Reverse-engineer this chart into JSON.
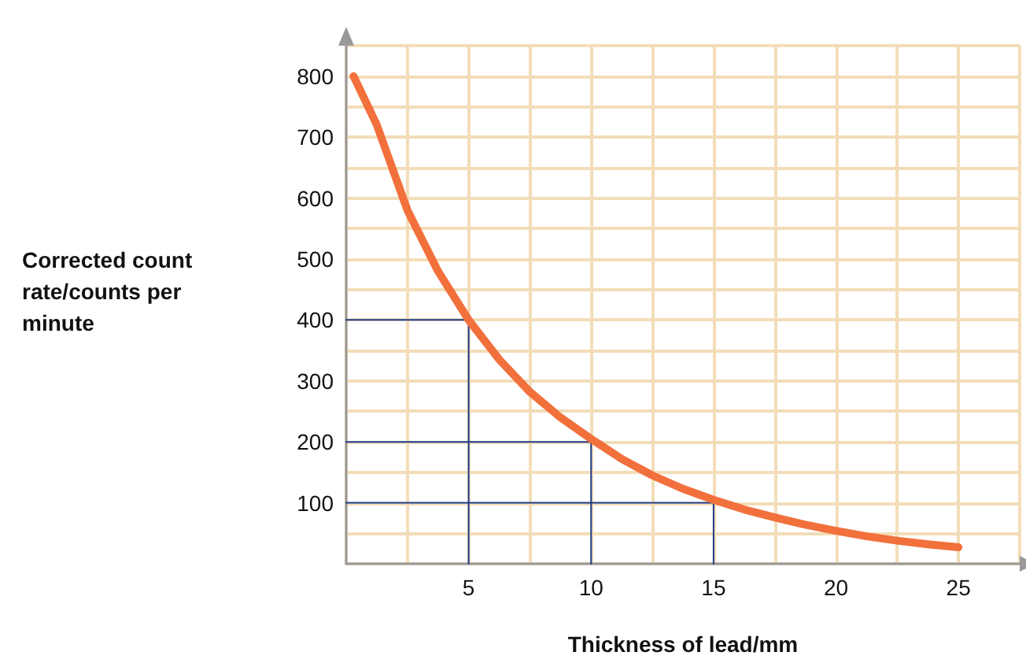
{
  "chart_data": {
    "type": "line",
    "xlabel": "Thickness of lead/mm",
    "ylabel": "Corrected count rate/counts per minute",
    "xlim": [
      0,
      27.5
    ],
    "xticks": [
      {
        "value": 0,
        "label": null
      },
      {
        "value": 2.5,
        "label": null
      },
      5,
      {
        "value": 7.5,
        "label": null
      },
      10,
      {
        "value": 12.5,
        "label": null
      },
      15,
      {
        "value": 17.5,
        "label": null
      },
      20,
      {
        "value": 22.5,
        "label": null
      },
      25,
      {
        "value": 27.5,
        "label": null
      }
    ],
    "ylim": [
      0,
      850
    ],
    "yticks": [
      {
        "value": 0,
        "label": null
      },
      {
        "value": 50,
        "label": null
      },
      100,
      {
        "value": 150,
        "label": null
      },
      200,
      {
        "value": 250,
        "label": null
      },
      300,
      {
        "value": 350,
        "label": null
      },
      400,
      {
        "value": 450,
        "label": null
      },
      500,
      {
        "value": 550,
        "label": null
      },
      600,
      {
        "value": 650,
        "label": null
      },
      700,
      {
        "value": 750,
        "label": null
      },
      800,
      {
        "value": 850,
        "label": null
      }
    ],
    "grid": true,
    "marker": "none",
    "series": [
      {
        "color": "#f2703c",
        "x": [
          0.3,
          1.25,
          2.5,
          3.75,
          5,
          6.25,
          7.5,
          8.75,
          10,
          11.25,
          12.5,
          13.75,
          15,
          16.25,
          17.5,
          18.75,
          20,
          21.25,
          22.5,
          23.75,
          25
        ],
        "values": [
          800,
          720,
          580,
          480,
          400,
          335,
          282,
          240,
          205,
          172,
          145,
          123,
          105,
          89,
          76,
          64,
          54,
          45,
          38,
          32,
          27
        ]
      },
      {
        "color": "#1f3c88",
        "x": [
          0,
          5,
          5
        ],
        "values": [
          400,
          400,
          0
        ]
      },
      {
        "color": "#1f3c88",
        "x": [
          0,
          10,
          10
        ],
        "values": [
          200,
          200,
          0
        ]
      },
      {
        "color": "#1f3c88",
        "x": [
          0,
          15,
          15
        ],
        "values": [
          100,
          100,
          0
        ]
      }
    ]
  }
}
